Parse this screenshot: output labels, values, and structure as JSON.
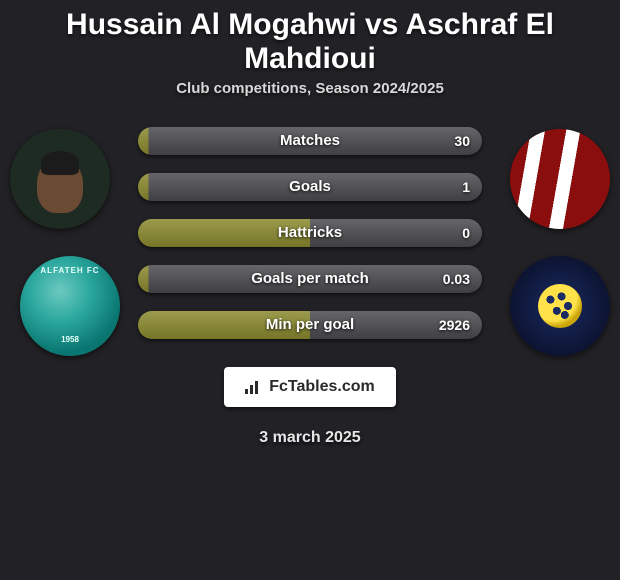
{
  "title": "Hussain Al Mogahwi vs Aschraf El Mahdioui",
  "subtitle": "Club competitions, Season 2024/2025",
  "date": "3 march 2025",
  "brand": "FcTables.com",
  "colors": {
    "bar_left": "#8b8a2e",
    "bar_right": "#4b4b4f",
    "bar_left_light": "#a7a53f",
    "bar_right_light": "#606067"
  },
  "club_left": {
    "name": "ALFATEH FC",
    "year": "1958"
  },
  "stats": [
    {
      "label": "Matches",
      "value_right": "30",
      "left_pct": 3,
      "right_pct": 97
    },
    {
      "label": "Goals",
      "value_right": "1",
      "left_pct": 3,
      "right_pct": 97
    },
    {
      "label": "Hattricks",
      "value_right": "0",
      "left_pct": 50,
      "right_pct": 50
    },
    {
      "label": "Goals per match",
      "value_right": "0.03",
      "left_pct": 3,
      "right_pct": 97
    },
    {
      "label": "Min per goal",
      "value_right": "2926",
      "left_pct": 50,
      "right_pct": 50
    }
  ]
}
